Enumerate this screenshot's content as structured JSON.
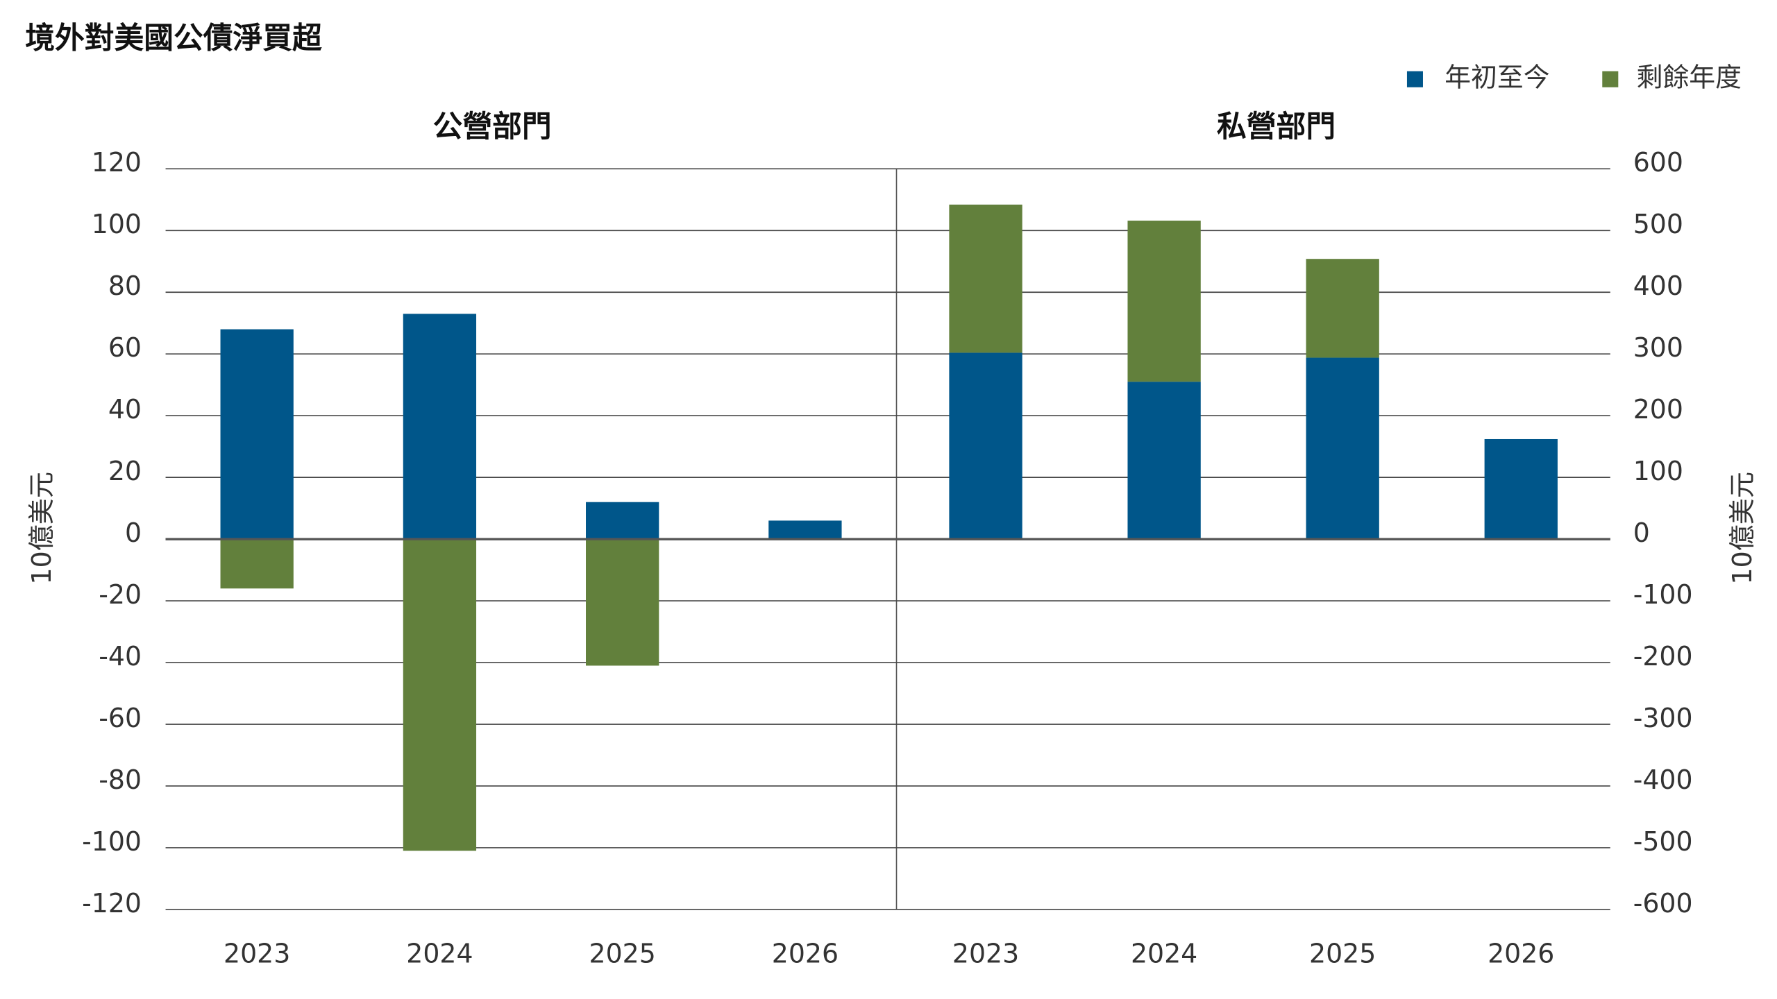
{
  "title": "境外對美國公債淨買超",
  "chart_data": [
    {
      "type": "bar",
      "stacked": true,
      "title": "公營部門",
      "ylabel": "10億美元",
      "categories": [
        "2023",
        "2024",
        "2025",
        "2026"
      ],
      "series": [
        {
          "name": "年初至今",
          "color": "#00568a",
          "values": [
            68,
            73,
            12,
            6
          ]
        },
        {
          "name": "剩餘年度",
          "color": "#62803c",
          "values": [
            -16,
            -101,
            -41,
            null
          ]
        }
      ],
      "ylim": [
        -120,
        120
      ],
      "yticks": [
        -120,
        -100,
        -80,
        -60,
        -40,
        -20,
        0,
        20,
        40,
        60,
        80,
        100,
        120
      ],
      "grid": true
    },
    {
      "type": "bar",
      "stacked": true,
      "title": "私營部門",
      "ylabel": "10億美元",
      "categories": [
        "2023",
        "2024",
        "2025",
        "2026"
      ],
      "series": [
        {
          "color": "#00568a",
          "values": [
            302,
            255,
            294,
            162
          ]
        },
        {
          "color": "#62803c",
          "values": [
            240,
            261,
            160,
            null
          ]
        }
      ],
      "ylim": [
        -600,
        600
      ],
      "yticks": [
        -600,
        -500,
        -400,
        -300,
        -200,
        -100,
        0,
        100,
        200,
        300,
        400,
        500,
        600
      ],
      "grid": true
    }
  ]
}
